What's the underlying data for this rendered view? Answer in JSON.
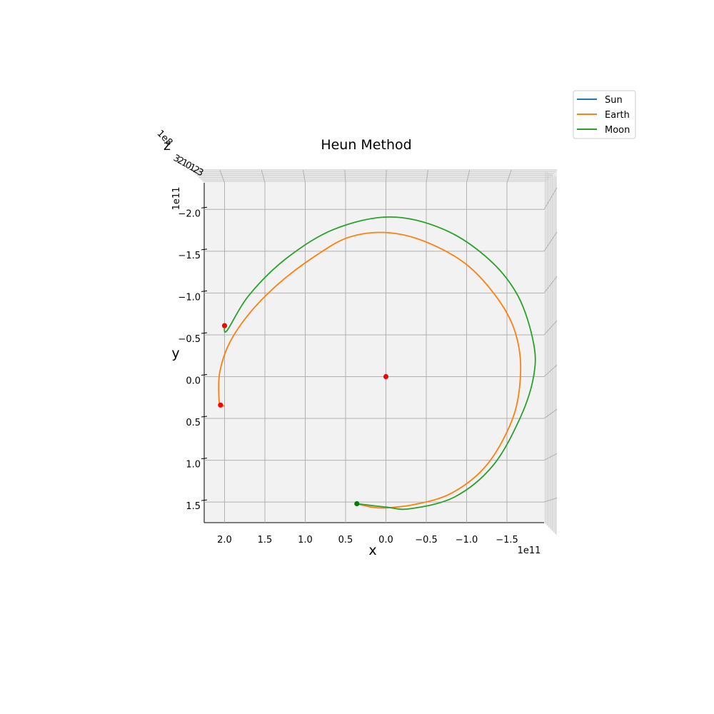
{
  "chart_data": {
    "type": "line",
    "projection": "3d, viewed from above (x-y plane)",
    "title": "Heun Method",
    "xlabel": "x",
    "ylabel": "y",
    "zlabel": "z",
    "x_offset_text": "1e11",
    "y_offset_text": "1e11",
    "z_offset_text": "1e8",
    "x_axis_inverted": true,
    "y_axis_inverted": true,
    "xlim": [
      2.25,
      -1.95
    ],
    "ylim": [
      -2.31,
      1.75
    ],
    "x_ticks": [
      2.0,
      1.5,
      1.0,
      0.5,
      0.0,
      -0.5,
      -1.0,
      -1.5
    ],
    "x_tick_labels": [
      "2.0",
      "1.5",
      "1.0",
      "0.5",
      "0.0",
      "−0.5",
      "−1.0",
      "−1.5"
    ],
    "y_ticks": [
      -2.0,
      -1.5,
      -1.0,
      -0.5,
      0.0,
      0.5,
      1.0,
      1.5
    ],
    "y_tick_labels": [
      "−2.0",
      "−1.5",
      "−1.0",
      "−0.5",
      "0.0",
      "0.5",
      "1.0",
      "1.5"
    ],
    "z_tick_labels": [
      "3",
      "2",
      "1",
      "0",
      "1",
      "2",
      "3"
    ],
    "grid": true,
    "legend_position": "upper right, outside axes",
    "series": [
      {
        "name": "Sun",
        "color": "#1f77b4",
        "x": [
          0.0
        ],
        "y": [
          0.0
        ]
      },
      {
        "name": "Earth",
        "color": "#ff7f0e",
        "x": [
          0.36,
          0.18,
          0.0,
          -0.35,
          -0.8,
          -1.22,
          -1.52,
          -1.65,
          -1.65,
          -1.47,
          -1.05,
          -0.55,
          -0.05,
          0.45,
          0.88,
          1.32,
          1.68,
          1.94,
          2.06,
          2.07,
          2.05,
          2.0
        ],
        "y": [
          1.52,
          1.56,
          1.57,
          1.53,
          1.4,
          1.09,
          0.62,
          0.18,
          -0.34,
          -0.81,
          -1.3,
          -1.59,
          -1.72,
          -1.67,
          -1.44,
          -1.12,
          -0.77,
          -0.4,
          -0.05,
          0.25,
          0.34,
          0.35
        ]
      },
      {
        "name": "Moon",
        "color": "#2ca02c",
        "x": [
          0.36,
          0.0,
          -0.3,
          -0.85,
          -1.33,
          -1.67,
          -1.83,
          -1.83,
          -1.64,
          -1.28,
          -0.72,
          -0.05,
          0.65,
          1.24,
          1.7,
          1.97,
          2.0
        ],
        "y": [
          1.52,
          1.56,
          1.58,
          1.44,
          1.06,
          0.48,
          0.0,
          -0.4,
          -0.96,
          -1.4,
          -1.76,
          -1.91,
          -1.76,
          -1.41,
          -0.97,
          -0.55,
          -0.61
        ]
      }
    ],
    "markers": [
      {
        "color": "#ff0000",
        "x": 0.0,
        "y": 0.0
      },
      {
        "color": "#ff0000",
        "x": 2.0,
        "y": -0.61
      },
      {
        "color": "#ff0000",
        "x": 2.05,
        "y": 0.34
      },
      {
        "color": "#008000",
        "x": 0.36,
        "y": 1.52
      }
    ]
  }
}
